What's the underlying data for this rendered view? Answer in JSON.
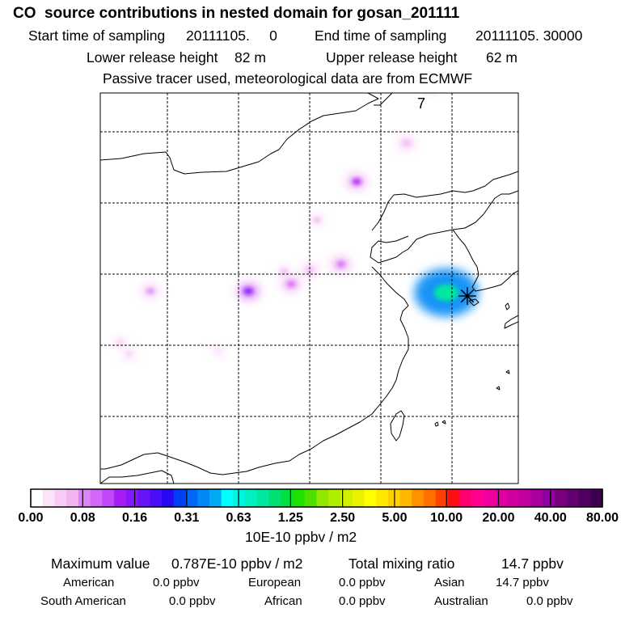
{
  "header": {
    "title": "CO  source contributions in nested domain for gosan_201111",
    "start_label": "Start time of sampling",
    "start_value": "20111105.     0",
    "end_label": "End time of sampling",
    "end_value": "20111105. 30000",
    "lower_label": "Lower release height",
    "lower_value": "82 m",
    "upper_label": "Upper release height",
    "upper_value": "62 m",
    "info": "Passive tracer used, meteorological data are from ECMWF"
  },
  "map": {
    "panel_number": "7",
    "receptor_symbol": "✳"
  },
  "chart_data": {
    "type": "heatmap",
    "title": "CO  source contributions in nested domain for gosan_201111",
    "colorbar": {
      "unit_label": "10E-10 ppbv / m2",
      "tick_labels": [
        "0.00",
        "0.08",
        "0.16",
        "0.31",
        "0.63",
        "1.25",
        "2.50",
        "5.00",
        "10.00",
        "20.00",
        "40.00",
        "80.00"
      ],
      "colors": [
        "#ffffff",
        "#fbe3fb",
        "#f7ccf7",
        "#f2b3f2",
        "#de85f7",
        "#d268f7",
        "#c247f8",
        "#a81cf8",
        "#8418f8",
        "#6a12f8",
        "#4c0ef8",
        "#2608f5",
        "#0040f5",
        "#0066f5",
        "#0088f5",
        "#00aaf5",
        "#00ffff",
        "#00f5e0",
        "#00f0c0",
        "#00e8a0",
        "#00e070",
        "#00e040",
        "#20e000",
        "#50e000",
        "#90e800",
        "#b0ee00",
        "#d0f000",
        "#eaf000",
        "#ffff00",
        "#ffe800",
        "#ffd000",
        "#ffb800",
        "#ff9000",
        "#ff7000",
        "#ff4000",
        "#ff1010",
        "#ff0070",
        "#ff0090",
        "#f000a0",
        "#e000a0",
        "#d000a0",
        "#c000a0",
        "#a800a0",
        "#9000a0",
        "#7a0080",
        "#640070",
        "#500060",
        "#3c0050"
      ]
    },
    "plumes": [
      {
        "lon": 118.3,
        "lat": 46.5,
        "value": 0.12
      },
      {
        "lon": 121.8,
        "lat": 49.2,
        "value": 0.06
      },
      {
        "lon": 123.4,
        "lat": 53.4,
        "value": 0.12
      },
      {
        "lon": 115.5,
        "lat": 43.8,
        "value": 0.05
      },
      {
        "lon": 113.2,
        "lat": 40.2,
        "value": 0.05
      },
      {
        "lon": 117.2,
        "lat": 40.7,
        "value": 0.1
      },
      {
        "lon": 115.0,
        "lat": 40.3,
        "value": 0.06
      },
      {
        "lon": 113.7,
        "lat": 39.3,
        "value": 0.1
      },
      {
        "lon": 110.7,
        "lat": 38.8,
        "value": 0.14
      },
      {
        "lon": 103.8,
        "lat": 38.8,
        "value": 0.08
      },
      {
        "lon": 124.6,
        "lat": 38.7,
        "value": 0.79
      },
      {
        "lon": 101.7,
        "lat": 35.2,
        "value": 0.03
      },
      {
        "lon": 102.3,
        "lat": 34.4,
        "value": 0.04
      },
      {
        "lon": 108.6,
        "lat": 34.6,
        "value": 0.02
      }
    ]
  },
  "stats": {
    "max_label": "Maximum value",
    "max_value": "0.787E-10 ppbv / m2",
    "total_label": "Total mixing ratio",
    "total_value": "14.7 ppbv",
    "regions": [
      {
        "name": "American",
        "value": "0.0 ppbv"
      },
      {
        "name": "European",
        "value": "0.0 ppbv"
      },
      {
        "name": "Asian",
        "value": "14.7 ppbv"
      },
      {
        "name": "South American",
        "value": "0.0 ppbv"
      },
      {
        "name": "African",
        "value": "0.0 ppbv"
      },
      {
        "name": "Australian",
        "value": "0.0 ppbv"
      }
    ]
  },
  "colors": {
    "frame": "#000000",
    "grid": "#000000",
    "background": "#ffffff"
  }
}
